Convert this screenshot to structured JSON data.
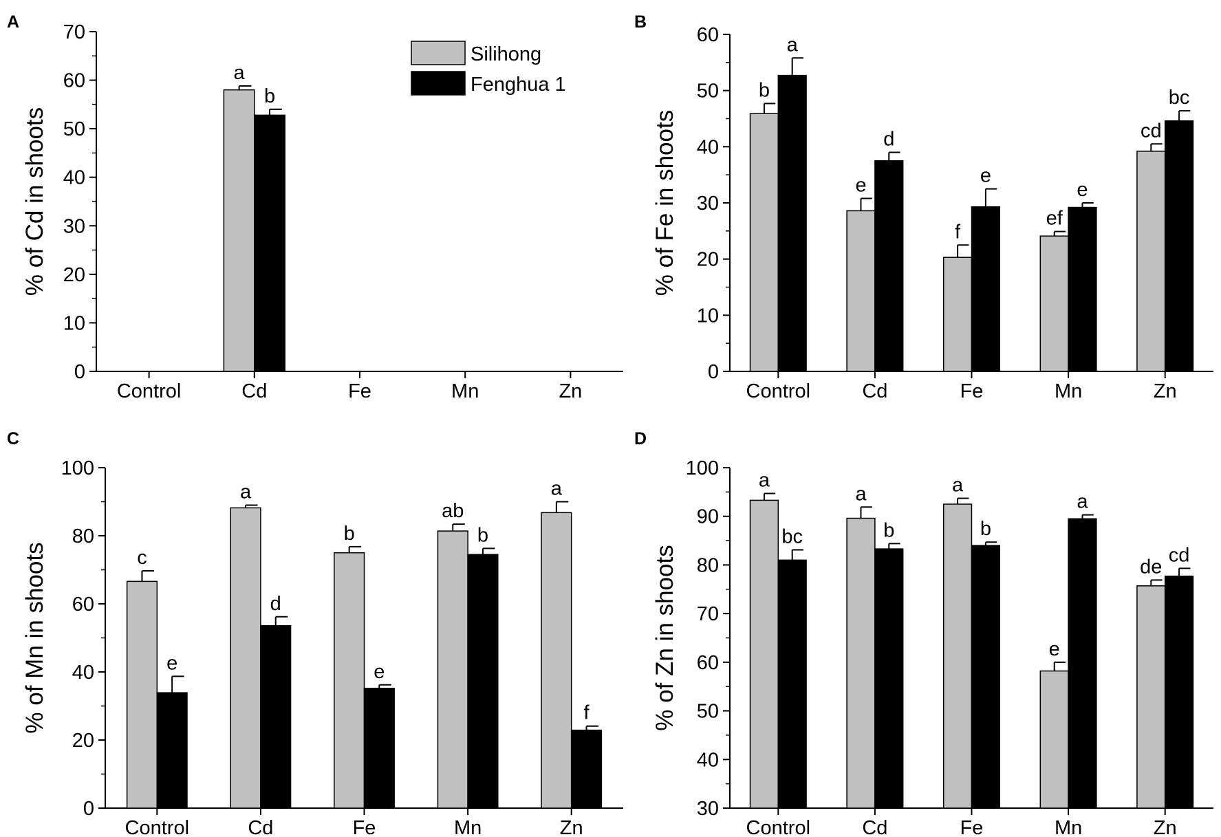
{
  "chart_data": [
    {
      "type": "bar",
      "panel_label": "A",
      "ylabel": "% of Cd in shoots",
      "xlabel": "",
      "ylim": [
        0,
        70
      ],
      "ytick_step": 10,
      "categories": [
        "Control",
        "Cd",
        "Fe",
        "Mn",
        "Zn"
      ],
      "series": [
        {
          "name": "Silihong",
          "values": [
            null,
            58,
            null,
            null,
            null
          ],
          "errors": [
            null,
            0.8,
            null,
            null,
            null
          ],
          "labels": [
            "",
            "a",
            "",
            "",
            ""
          ]
        },
        {
          "name": "Fenghua 1",
          "values": [
            null,
            52.8,
            null,
            null,
            null
          ],
          "errors": [
            null,
            1.2,
            null,
            null,
            null
          ],
          "labels": [
            "",
            "b",
            "",
            "",
            ""
          ]
        }
      ],
      "legend": {
        "position": "top-right",
        "entries": [
          "Silihong",
          "Fenghua 1"
        ]
      }
    },
    {
      "type": "bar",
      "panel_label": "B",
      "ylabel": "% of Fe in shoots",
      "xlabel": "",
      "ylim": [
        0,
        60
      ],
      "ytick_step": 10,
      "categories": [
        "Control",
        "Cd",
        "Fe",
        "Mn",
        "Zn"
      ],
      "series": [
        {
          "name": "Silihong",
          "values": [
            45.9,
            28.6,
            20.3,
            24.1,
            39.2
          ],
          "errors": [
            1.8,
            2.2,
            2.2,
            0.8,
            1.3
          ],
          "labels": [
            "b",
            "e",
            "f",
            "ef",
            "cd"
          ]
        },
        {
          "name": "Fenghua 1",
          "values": [
            52.7,
            37.5,
            29.3,
            29.2,
            44.6
          ],
          "errors": [
            3.1,
            1.5,
            3.2,
            0.8,
            1.8
          ],
          "labels": [
            "a",
            "d",
            "e",
            "e",
            "bc"
          ]
        }
      ]
    },
    {
      "type": "bar",
      "panel_label": "C",
      "ylabel": "% of Mn in shoots",
      "xlabel": "",
      "ylim": [
        0,
        100
      ],
      "ytick_step": 20,
      "categories": [
        "Control",
        "Cd",
        "Fe",
        "Mn",
        "Zn"
      ],
      "series": [
        {
          "name": "Silihong",
          "values": [
            66.6,
            88.2,
            75.0,
            81.4,
            86.8
          ],
          "errors": [
            3.1,
            0.8,
            1.8,
            2.0,
            3.2
          ],
          "labels": [
            "c",
            "a",
            "b",
            "ab",
            "a"
          ]
        },
        {
          "name": "Fenghua 1",
          "values": [
            33.9,
            53.6,
            35.2,
            74.5,
            22.9
          ],
          "errors": [
            4.8,
            2.6,
            1.0,
            1.8,
            1.2
          ],
          "labels": [
            "e",
            "d",
            "e",
            "b",
            "f"
          ]
        }
      ]
    },
    {
      "type": "bar",
      "panel_label": "D",
      "ylabel": "% of Zn in shoots",
      "xlabel": "",
      "ylim": [
        30,
        100
      ],
      "ytick_step": 10,
      "categories": [
        "Control",
        "Cd",
        "Fe",
        "Mn",
        "Zn"
      ],
      "series": [
        {
          "name": "Silihong",
          "values": [
            93.3,
            89.6,
            92.5,
            58.2,
            75.7
          ],
          "errors": [
            1.4,
            2.3,
            1.2,
            1.8,
            1.2
          ],
          "labels": [
            "a",
            "a",
            "a",
            "e",
            "de"
          ]
        },
        {
          "name": "Fenghua 1",
          "values": [
            81.0,
            83.3,
            84.0,
            89.5,
            77.7
          ],
          "errors": [
            2.1,
            1.1,
            0.7,
            0.8,
            1.6
          ],
          "labels": [
            "bc",
            "b",
            "b",
            "a",
            "cd"
          ]
        }
      ]
    }
  ],
  "colors": {
    "silihong_fill": "#c0c0c0",
    "fenghua_fill": "#000000",
    "axis": "#000000"
  }
}
